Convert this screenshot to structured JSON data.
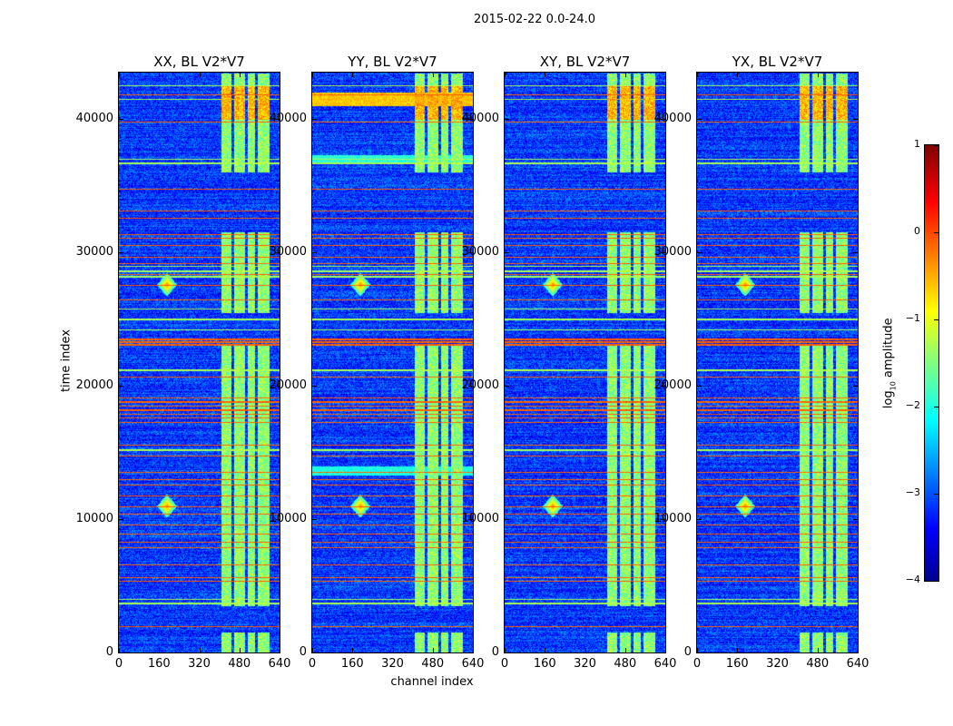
{
  "chart_data": {
    "type": "heatmap",
    "suptitle": "2015-02-22 0.0-24.0",
    "xlabel": "channel index",
    "ylabel": "time index",
    "xlim": [
      0,
      640
    ],
    "ylim": [
      0,
      43470
    ],
    "xticks": [
      "0",
      "160",
      "320",
      "480",
      "640"
    ],
    "xtick_values": [
      0,
      160,
      320,
      480,
      640
    ],
    "yticks": [
      "0",
      "10000",
      "20000",
      "30000",
      "40000"
    ],
    "ytick_values": [
      0,
      10000,
      20000,
      30000,
      40000
    ],
    "panels": [
      {
        "title": "XX, BL V2*V7",
        "broadband": []
      },
      {
        "title": "YY, BL V2*V7",
        "broadband": [
          {
            "t": [
              41000,
              42000
            ],
            "v": -0.6
          },
          {
            "t": [
              13300,
              14000
            ],
            "v": -2.0
          },
          {
            "t": [
              36600,
              37300
            ],
            "v": -1.9
          }
        ]
      },
      {
        "title": "XY, BL V2*V7",
        "broadband": []
      },
      {
        "title": "YX, BL V2*V7",
        "broadband": []
      }
    ],
    "rfi_channel_bands": [
      [
        405,
        448
      ],
      [
        456,
        499
      ],
      [
        510,
        542
      ],
      [
        553,
        597
      ]
    ],
    "rfi_active_times": [
      [
        40000,
        43470
      ],
      [
        36000,
        40000
      ],
      [
        25500,
        31500
      ],
      [
        3500,
        23000
      ],
      [
        0,
        1500
      ]
    ],
    "rfi_lines_time": [
      41840,
      39800,
      34760,
      33130,
      32590,
      31360,
      31090,
      30540,
      29660,
      29180,
      28370,
      27550,
      26460,
      23100,
      23300,
      23500,
      20680,
      19100,
      18800,
      18500,
      18200,
      17900,
      17600,
      17300,
      15580,
      14760,
      13540,
      12990,
      12590,
      11770,
      10950,
      10410,
      9590,
      8910,
      8300,
      7890,
      6600,
      5650,
      5370,
      1970
    ],
    "weak_lines_time": [
      42500,
      41500,
      37000,
      36700,
      29000,
      28600,
      28200,
      25800,
      25000,
      24200,
      21200,
      15200,
      4000,
      3700
    ],
    "hotspots": [
      {
        "channel": 190,
        "time": 11000
      },
      {
        "channel": 190,
        "time": 27600
      }
    ],
    "colorbar": {
      "label": "log10 amplitude",
      "label_main": "log",
      "label_sub": "10",
      "label_rest": " amplitude",
      "range": [
        -4,
        1
      ],
      "ticks": [
        "1",
        "0",
        "−1",
        "−2",
        "−3",
        "−4"
      ],
      "tick_values": [
        1,
        0,
        -1,
        -2,
        -3,
        -4
      ],
      "colormap": "jet"
    }
  }
}
